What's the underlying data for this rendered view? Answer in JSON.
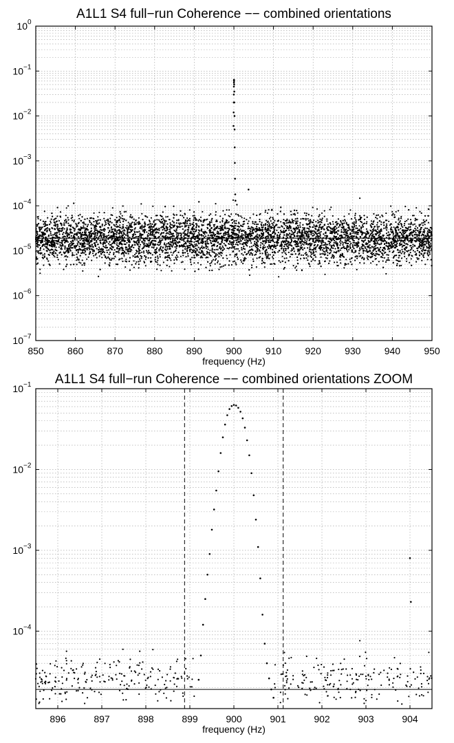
{
  "chart_data": [
    {
      "type": "scatter",
      "title": "A1L1 S4 full−run Coherence −− combined orientations",
      "xlabel": "frequency (Hz)",
      "ylabel": "",
      "xlim": [
        850,
        950
      ],
      "ylim": [
        1e-07,
        1
      ],
      "yscale": "log",
      "grid": true,
      "x_ticks": [
        "850",
        "860",
        "870",
        "880",
        "890",
        "900",
        "910",
        "920",
        "930",
        "940",
        "950"
      ],
      "y_ticks": [
        {
          "base": "10",
          "exp": "0"
        },
        {
          "base": "10",
          "exp": "−1"
        },
        {
          "base": "10",
          "exp": "−2"
        },
        {
          "base": "10",
          "exp": "−3"
        },
        {
          "base": "10",
          "exp": "−4"
        },
        {
          "base": "10",
          "exp": "−5"
        },
        {
          "base": "10",
          "exp": "−6"
        },
        {
          "base": "10",
          "exp": "−7"
        }
      ],
      "reference_line": 1.9e-05,
      "noise_floor": {
        "frequency_range": [
          850,
          950
        ],
        "typical": 1.9e-05,
        "min": 1e-07,
        "max": 0.00015
      },
      "series": [
        {
          "x": [
            899.92,
            899.95,
            899.97,
            899.98,
            900.0,
            900.01,
            900.02,
            900.04,
            900.05,
            900.07,
            900.1,
            900.12,
            900.15,
            900.18,
            900.2,
            900.25,
            900.3,
            900.35,
            900.4,
            903.7
          ],
          "y": [
            0.006,
            0.012,
            0.02,
            0.03,
            0.045,
            0.055,
            0.062,
            0.064,
            0.06,
            0.05,
            0.035,
            0.02,
            0.01,
            0.005,
            0.002,
            0.0009,
            0.0004,
            0.00018,
            0.00013,
            0.00023
          ]
        }
      ]
    },
    {
      "type": "scatter",
      "title": "A1L1 S4 full−run Coherence −− combined orientations ZOOM",
      "xlabel": "frequency (Hz)",
      "ylabel": "",
      "xlim": [
        895.5,
        904.5
      ],
      "ylim": [
        1.1e-05,
        0.1
      ],
      "yscale": "log",
      "grid": true,
      "x_ticks": [
        "896",
        "897",
        "898",
        "899",
        "900",
        "901",
        "902",
        "903",
        "904"
      ],
      "y_ticks": [
        {
          "base": "10",
          "exp": "−1"
        },
        {
          "base": "10",
          "exp": "−2"
        },
        {
          "base": "10",
          "exp": "−3"
        },
        {
          "base": "10",
          "exp": "−4"
        }
      ],
      "reference_line": 1.9e-05,
      "vertical_lines": [
        898.88,
        901.12
      ],
      "noise_floor": {
        "frequency_range": [
          895.5,
          904.5
        ],
        "typical": 2.5e-05,
        "min": 1.1e-05,
        "max": 8e-05
      },
      "series": [
        {
          "x": [
            899.2,
            899.25,
            899.3,
            899.35,
            899.4,
            899.45,
            899.5,
            899.55,
            899.6,
            899.65,
            899.7,
            899.75,
            899.8,
            899.85,
            899.9,
            899.95,
            900.0,
            900.05,
            900.1,
            900.15,
            900.2,
            900.25,
            900.3,
            900.35,
            900.4,
            900.45,
            900.5,
            900.55,
            900.6,
            900.65,
            900.7,
            900.75,
            900.8,
            900.85,
            900.9,
            904.0,
            904.02
          ],
          "y": [
            2.5e-05,
            5e-05,
            0.00012,
            0.00025,
            0.0005,
            0.0009,
            0.0018,
            0.0032,
            0.0055,
            0.0095,
            0.016,
            0.025,
            0.036,
            0.047,
            0.056,
            0.061,
            0.063,
            0.062,
            0.058,
            0.052,
            0.043,
            0.033,
            0.023,
            0.015,
            0.009,
            0.0048,
            0.0024,
            0.0011,
            0.00045,
            0.00016,
            7e-05,
            4e-05,
            2.6e-05,
            1.9e-05,
            1.5e-05,
            0.0008,
            0.00023
          ]
        }
      ]
    }
  ]
}
